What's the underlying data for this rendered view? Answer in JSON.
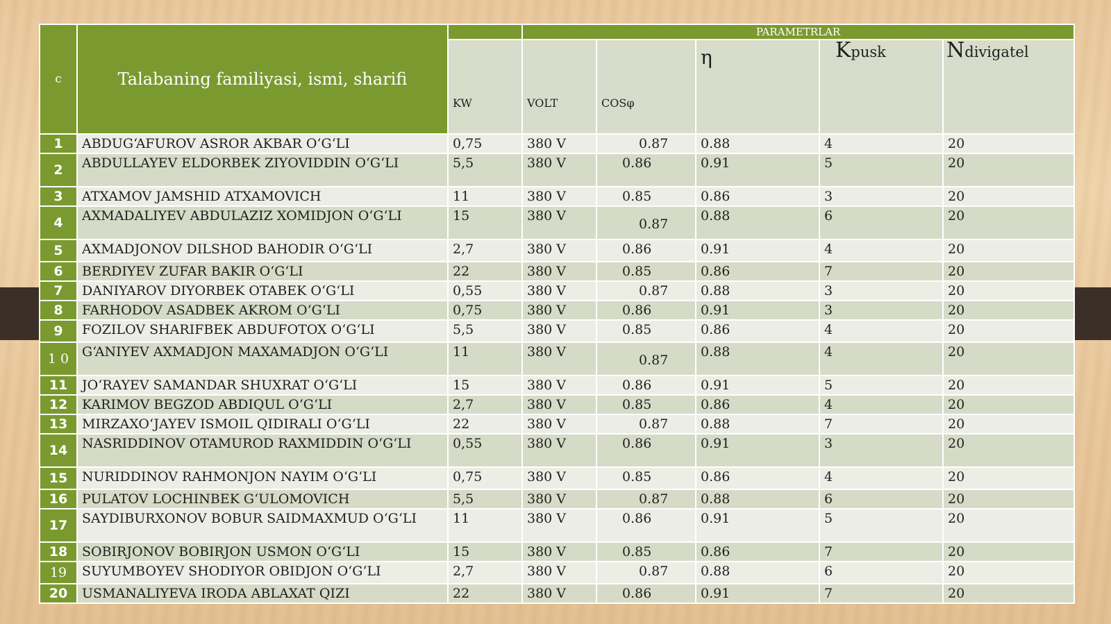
{
  "header": {
    "c": "c",
    "name": "Talabaning familiyasi, ismi, sharifi",
    "params": "PARAMETRLAR",
    "kw": "KW",
    "volt": "VOLT",
    "cos": "COSφ",
    "eta": "η",
    "kpusk_main": "K",
    "kpusk_sub": "pusk",
    "ndv_main": "N",
    "ndv_sub": "divigatel"
  },
  "colors": {
    "header_green": "#7a9a2f",
    "row_light": "#eceee6",
    "row_dark": "#d5dbc7"
  },
  "rows": [
    {
      "n": "1",
      "name": "ABDUGʻAFUROV ASROR AKBAR OʻGʻLI",
      "kw": "0,75",
      "volt": "380 V",
      "cos": "0.87",
      "eta": "0.88",
      "k": "4",
      "nd": "20"
    },
    {
      "n": "2",
      "name": "ABDULLAYEV ELDORBEK ZIYOVIDDIN OʻGʻLI",
      "kw": "5,5",
      "volt": "380 V",
      "cos": "0.86",
      "eta": "0.91",
      "k": "5",
      "nd": "20"
    },
    {
      "n": "3",
      "name": "ATXAMOV JAMSHID ATXAMOVICH",
      "kw": "11",
      "volt": "380 V",
      "cos": "0.85",
      "eta": "0.86",
      "k": "3",
      "nd": "20"
    },
    {
      "n": "4",
      "name": "AXMADALIYEV ABDULAZIZ XOMIDJON OʻGʻLI",
      "kw": "15",
      "volt": "380 V",
      "cos": "0.87",
      "eta": "0.88",
      "k": "6",
      "nd": "20"
    },
    {
      "n": "5",
      "name": "AXMADJONOV DILSHOD BAHODIR OʻGʻLI",
      "kw": "2,7",
      "volt": "380 V",
      "cos": "0.86",
      "eta": "0.91",
      "k": "4",
      "nd": "20"
    },
    {
      "n": "6",
      "name": "BERDIYEV ZUFAR BAKIR OʻGʻLI",
      "kw": "22",
      "volt": "380 V",
      "cos": "0.85",
      "eta": "0.86",
      "k": "7",
      "nd": "20"
    },
    {
      "n": "7",
      "name": "DANIYAROV DIYORBEK OTABEK OʻGʻLI",
      "kw": "0,55",
      "volt": "380 V",
      "cos": "0.87",
      "eta": "0.88",
      "k": "3",
      "nd": "20"
    },
    {
      "n": "8",
      "name": "FARHODOV ASADBEK AKROM OʻGʻLI",
      "kw": "0,75",
      "volt": "380 V",
      "cos": "0.86",
      "eta": "0.91",
      "k": "3",
      "nd": "20"
    },
    {
      "n": "9",
      "name": "FOZILOV SHARIFBEK ABDUFOTOX OʻGʻLI",
      "kw": "5,5",
      "volt": "380 V",
      "cos": "0.85",
      "eta": "0.86",
      "k": "4",
      "nd": "20"
    },
    {
      "n": "1 0",
      "name": "GʻANIYEV AXMADJON MAXAMADJON OʻGʻLI",
      "kw": "11",
      "volt": "380 V",
      "cos": "0.87",
      "eta": "0.88",
      "k": "4",
      "nd": "20"
    },
    {
      "n": "11",
      "name": "JOʻRAYEV SAMANDAR SHUXRAT OʻGʻLI",
      "kw": "15",
      "volt": "380 V",
      "cos": "0.86",
      "eta": "0.91",
      "k": "5",
      "nd": "20"
    },
    {
      "n": "12",
      "name": "KARIMOV BEGZOD ABDIQUL OʻGʻLI",
      "kw": "2,7",
      "volt": "380 V",
      "cos": "0.85",
      "eta": "0.86",
      "k": "4",
      "nd": "20"
    },
    {
      "n": "13",
      "name": "MIRZAXOʻJAYEV ISMOIL QIDIRALI OʻGʻLI",
      "kw": "22",
      "volt": "380 V",
      "cos": "0.87",
      "eta": "0.88",
      "k": "7",
      "nd": "20"
    },
    {
      "n": "14",
      "name": "NASRIDDINOV OTAMUROD RAXMIDDIN OʻGʻLI",
      "kw": "0,55",
      "volt": "380 V",
      "cos": "0.86",
      "eta": "0.91",
      "k": "3",
      "nd": "20"
    },
    {
      "n": "15",
      "name": "NURIDDINOV RAHMONJON NAYIM OʻGʻLI",
      "kw": "0,75",
      "volt": "380 V",
      "cos": "0.85",
      "eta": "0.86",
      "k": "4",
      "nd": "20"
    },
    {
      "n": "16",
      "name": "PULATOV LOCHINBEK GʻULOMOVICH",
      "kw": "5,5",
      "volt": "380 V",
      "cos": "0.87",
      "eta": "0.88",
      "k": "6",
      "nd": "20"
    },
    {
      "n": "17",
      "name": "SAYDIBURXONOV BOBUR SAIDMAXMUD OʻGʻLI",
      "kw": "11",
      "volt": "380 V",
      "cos": "0.86",
      "eta": "0.91",
      "k": "5",
      "nd": "20"
    },
    {
      "n": "18",
      "name": "SOBIRJONOV BOBIRJON USMON OʻGʻLI",
      "kw": "15",
      "volt": "380 V",
      "cos": "0.85",
      "eta": "0.86",
      "k": "7",
      "nd": "20"
    },
    {
      "n": "19",
      "name": "SUYUMBOYEV SHODIYOR OBIDJON OʻGʻLI",
      "kw": "2,7",
      "volt": "380 V",
      "cos": "0.87",
      "eta": "0.88",
      "k": "6",
      "nd": "20"
    },
    {
      "n": "20",
      "name": "USMANALIYEVA IRODA ABLAXAT QIZI",
      "kw": "22",
      "volt": "380 V",
      "cos": "0.86",
      "eta": "0.91",
      "k": "7",
      "nd": "20"
    }
  ]
}
